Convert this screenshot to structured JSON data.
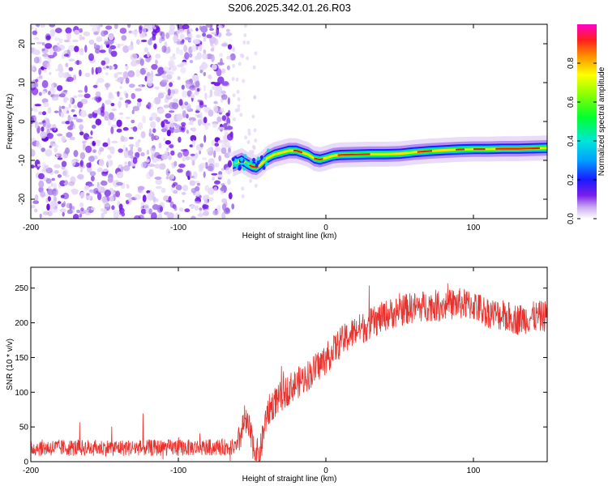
{
  "title": "S206.2025.342.01.26.R03",
  "chart_data": [
    {
      "type": "heatmap",
      "name": "spectrogram",
      "xlabel": "Height of straight line (km)",
      "ylabel": "Frequency (Hz)",
      "xlim": [
        -200,
        150
      ],
      "ylim": [
        -25,
        25
      ],
      "xticks": [
        -200,
        -100,
        0,
        100
      ],
      "yticks": [
        -20,
        -10,
        0,
        10,
        20
      ],
      "noise_region_x": [
        -200,
        -63
      ],
      "ridge": {
        "x": [
          -63,
          -60,
          -57,
          -53,
          -50,
          -47,
          -44,
          -40,
          -35,
          -30,
          -25,
          -20,
          -16,
          -12,
          -8,
          -4,
          0,
          5,
          10,
          20,
          30,
          40,
          50,
          60,
          70,
          80,
          90,
          100,
          110,
          120,
          130,
          140,
          150
        ],
        "freq": [
          -11,
          -10.5,
          -10,
          -11,
          -11.6,
          -11.8,
          -11,
          -9.5,
          -8.5,
          -8,
          -7.5,
          -7.5,
          -8,
          -8.5,
          -9.5,
          -9.8,
          -9.4,
          -8.8,
          -8.6,
          -8.5,
          -8.4,
          -8.4,
          -8.3,
          -7.9,
          -7.6,
          -7.4,
          -7.2,
          -7.1,
          -7.1,
          -7,
          -7,
          -6.9,
          -6.8
        ]
      },
      "colorbar": {
        "label": "Normalized spectral amplitude",
        "ticks": [
          "0.0",
          "0.2",
          "0.4",
          "0.6",
          "0.8"
        ],
        "range": [
          0,
          1
        ]
      }
    },
    {
      "type": "line",
      "name": "snr",
      "xlabel": "Height of straight line (km)",
      "ylabel": "SNR (10 * v/v)",
      "xlim": [
        -200,
        150
      ],
      "ylim": [
        0,
        280
      ],
      "xticks": [
        -200,
        -100,
        0,
        100
      ],
      "yticks": [
        0,
        50,
        100,
        150,
        200,
        250
      ],
      "color": "#e8322d",
      "trend": {
        "x": [
          -200,
          -150,
          -100,
          -60,
          -55,
          -52,
          -48,
          -45,
          -42,
          -40,
          -35,
          -30,
          -25,
          -20,
          -15,
          -10,
          -5,
          0,
          5,
          10,
          20,
          30,
          40,
          50,
          60,
          70,
          80,
          90,
          100,
          110,
          120,
          130,
          140,
          150
        ],
        "y": [
          20,
          20,
          20,
          21,
          60,
          45,
          15,
          8,
          45,
          70,
          85,
          95,
          105,
          112,
          120,
          128,
          138,
          148,
          160,
          172,
          188,
          198,
          210,
          218,
          222,
          225,
          225,
          228,
          225,
          215,
          210,
          205,
          208,
          210
        ]
      },
      "noise_amplitude": 12
    }
  ]
}
